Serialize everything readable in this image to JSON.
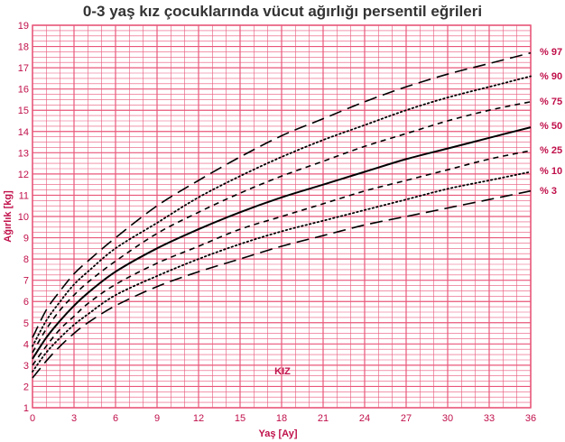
{
  "chart_data": {
    "type": "line",
    "title": "0-3 yaş kız çocuklarında vücut ağırlığı persentil eğrileri",
    "xlabel": "Yaş [Ay]",
    "ylabel": "Ağırlık [kg]",
    "xlim": [
      0,
      36
    ],
    "ylim": [
      1,
      19
    ],
    "x_ticks": [
      0,
      3,
      6,
      9,
      12,
      15,
      18,
      21,
      24,
      27,
      30,
      33,
      36
    ],
    "y_ticks": [
      1,
      2,
      3,
      4,
      5,
      6,
      7,
      8,
      9,
      10,
      11,
      12,
      13,
      14,
      15,
      16,
      17,
      18,
      19
    ],
    "grid": true,
    "annotation": "KIZ",
    "colors": {
      "grid": "#e8577a",
      "background": "#ffffff",
      "text": "#c0104a",
      "curves": "#000000"
    },
    "x": [
      0,
      1,
      2,
      3,
      4,
      6,
      9,
      12,
      15,
      18,
      21,
      24,
      27,
      30,
      33,
      36
    ],
    "series": [
      {
        "name": "% 97",
        "style": "long-dash",
        "values": [
          4.3,
          5.6,
          6.5,
          7.3,
          7.9,
          9.0,
          10.5,
          11.7,
          12.8,
          13.8,
          14.6,
          15.4,
          16.1,
          16.7,
          17.2,
          17.7
        ]
      },
      {
        "name": "% 90",
        "style": "dotted",
        "values": [
          3.9,
          5.1,
          6.0,
          6.8,
          7.4,
          8.5,
          9.7,
          10.9,
          11.9,
          12.8,
          13.6,
          14.3,
          15.0,
          15.6,
          16.1,
          16.6
        ]
      },
      {
        "name": "% 75",
        "style": "short-dash",
        "values": [
          3.6,
          4.7,
          5.6,
          6.3,
          6.9,
          7.9,
          9.2,
          10.2,
          11.1,
          11.9,
          12.6,
          13.3,
          13.9,
          14.5,
          15.0,
          15.4
        ]
      },
      {
        "name": "% 50",
        "style": "solid",
        "values": [
          3.3,
          4.3,
          5.1,
          5.8,
          6.4,
          7.4,
          8.5,
          9.4,
          10.2,
          10.9,
          11.5,
          12.1,
          12.7,
          13.2,
          13.7,
          14.2
        ]
      },
      {
        "name": "% 25",
        "style": "short-dash",
        "values": [
          3.0,
          3.9,
          4.7,
          5.3,
          5.9,
          6.8,
          7.8,
          8.6,
          9.4,
          10.0,
          10.6,
          11.2,
          11.7,
          12.2,
          12.7,
          13.1
        ]
      },
      {
        "name": "% 10",
        "style": "dotted",
        "values": [
          2.7,
          3.6,
          4.3,
          4.9,
          5.4,
          6.3,
          7.2,
          8.0,
          8.7,
          9.3,
          9.8,
          10.3,
          10.8,
          11.3,
          11.7,
          12.1
        ]
      },
      {
        "name": "% 3",
        "style": "long-dash",
        "values": [
          2.4,
          3.2,
          3.9,
          4.5,
          5.0,
          5.8,
          6.7,
          7.4,
          8.0,
          8.6,
          9.1,
          9.6,
          10.0,
          10.4,
          10.8,
          11.2
        ]
      }
    ]
  }
}
